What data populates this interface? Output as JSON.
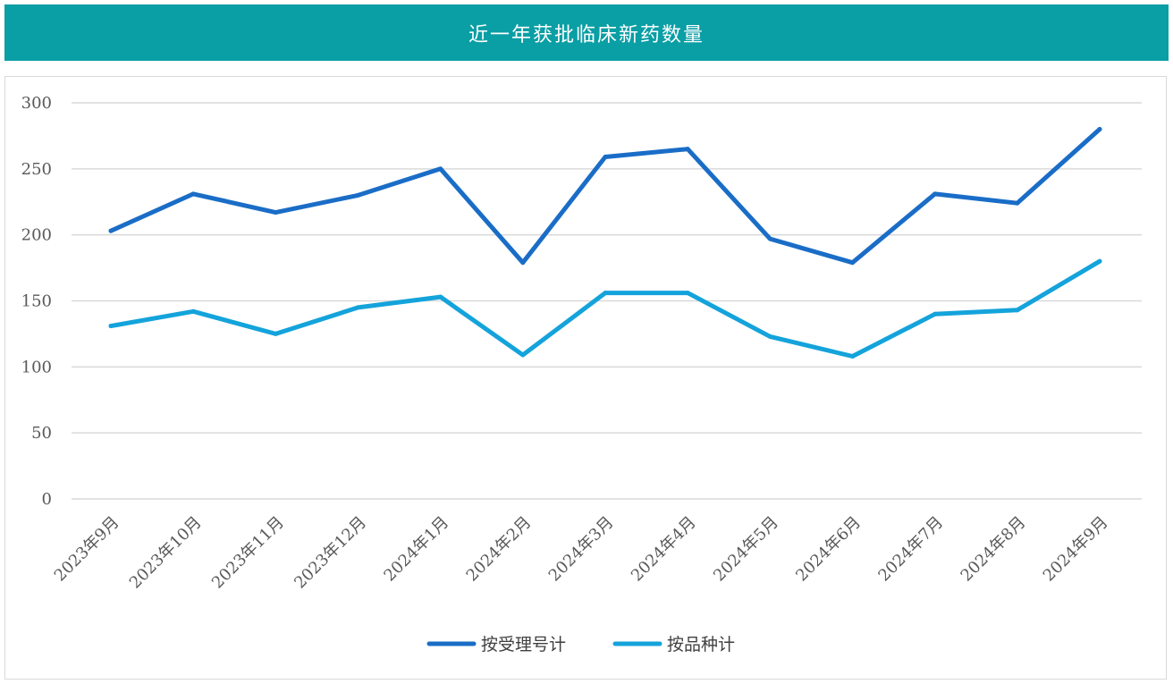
{
  "title": "近一年获批临床新药数量",
  "chart_data": {
    "type": "line",
    "categories": [
      "2023年9月",
      "2023年10月",
      "2023年11月",
      "2023年12月",
      "2024年1月",
      "2024年2月",
      "2024年3月",
      "2024年4月",
      "2024年5月",
      "2024年6月",
      "2024年7月",
      "2024年8月",
      "2024年9月"
    ],
    "series": [
      {
        "name": "按受理号计",
        "color": "#1a6dc7",
        "values": [
          203,
          231,
          217,
          230,
          250,
          179,
          259,
          265,
          197,
          179,
          231,
          224,
          280
        ]
      },
      {
        "name": "按品种计",
        "color": "#14a3db",
        "values": [
          131,
          142,
          125,
          145,
          153,
          109,
          156,
          156,
          123,
          108,
          140,
          143,
          180
        ]
      }
    ],
    "ylim": [
      0,
      300
    ],
    "yticks": [
      0,
      50,
      100,
      150,
      200,
      250,
      300
    ],
    "grid": true,
    "legend_position": "bottom"
  }
}
